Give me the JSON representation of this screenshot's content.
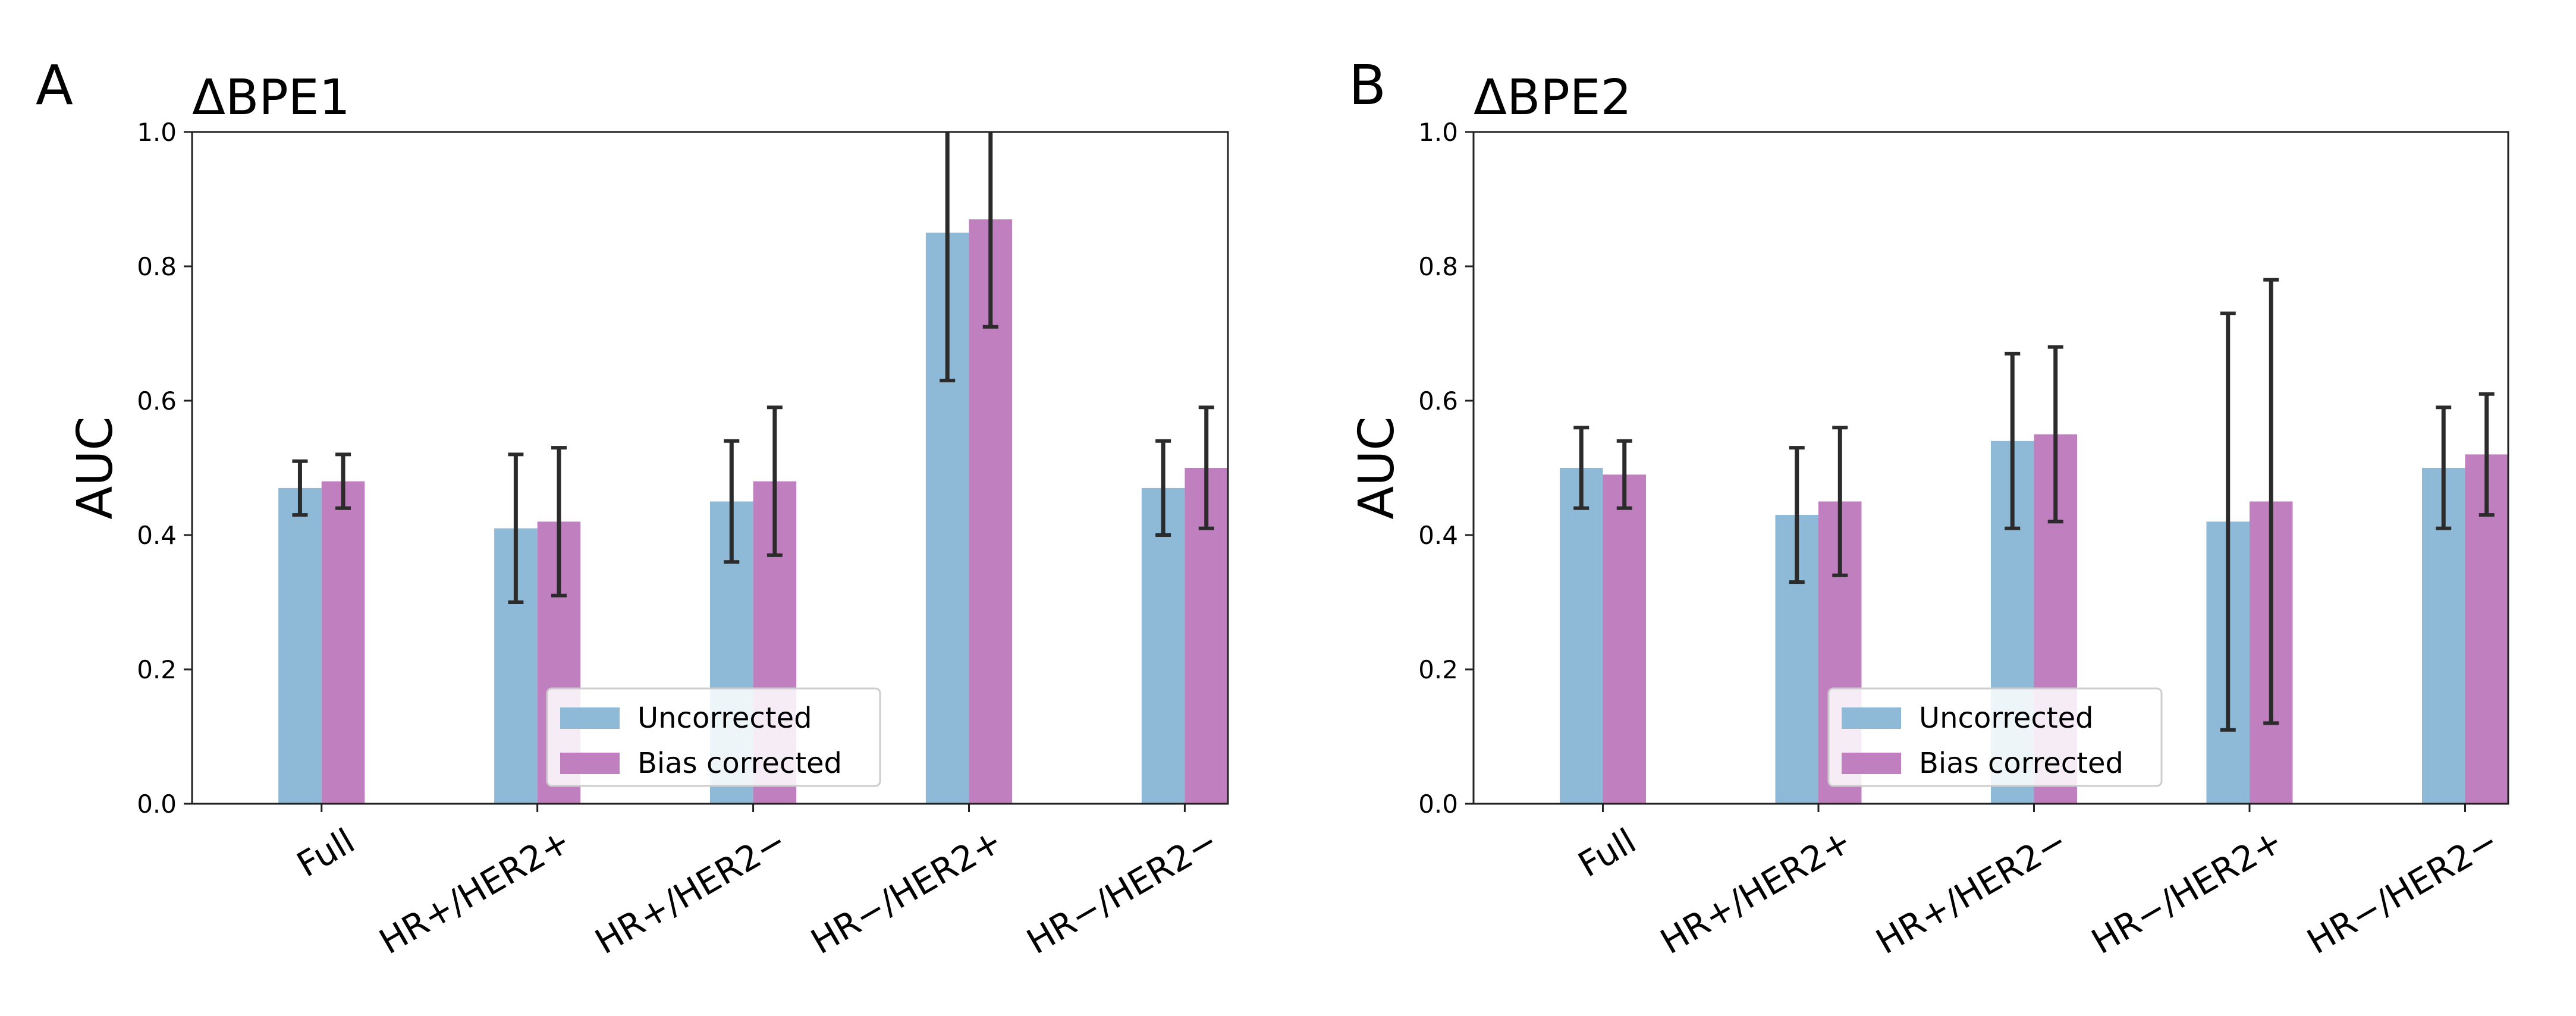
{
  "colors": {
    "uncorrected": "#8ebad8",
    "bias_corrected": "#c07fbf",
    "error_bar": "#2b2b2b",
    "axes": "#222222"
  },
  "chart_data": [
    {
      "type": "bar",
      "panel_letter": "A",
      "title": "ΔBPE1",
      "xlabel": "",
      "ylabel": "AUC",
      "ylim": [
        0,
        1.0
      ],
      "yticks": [
        "0.0",
        "0.2",
        "0.4",
        "0.6",
        "0.8",
        "1.0"
      ],
      "grid": false,
      "legend_placement": "lower-center",
      "categories": [
        "Full",
        "HR+/HER2+",
        "HR+/HER2−",
        "HR−/HER2+",
        "HR−/HER2−"
      ],
      "series": [
        {
          "name": "Uncorrected",
          "values": [
            0.47,
            0.41,
            0.45,
            0.85,
            0.47
          ],
          "err_low": [
            0.43,
            0.3,
            0.36,
            0.63,
            0.4
          ],
          "err_high": [
            0.51,
            0.52,
            0.54,
            1.07,
            0.54
          ]
        },
        {
          "name": "Bias corrected",
          "values": [
            0.48,
            0.42,
            0.48,
            0.87,
            0.5
          ],
          "err_low": [
            0.44,
            0.31,
            0.37,
            0.71,
            0.41
          ],
          "err_high": [
            0.52,
            0.53,
            0.59,
            1.03,
            0.59
          ]
        }
      ]
    },
    {
      "type": "bar",
      "panel_letter": "B",
      "title": "ΔBPE2",
      "xlabel": "",
      "ylabel": "AUC",
      "ylim": [
        0,
        1.0
      ],
      "yticks": [
        "0.0",
        "0.2",
        "0.4",
        "0.6",
        "0.8",
        "1.0"
      ],
      "grid": false,
      "legend_placement": "lower-center",
      "categories": [
        "Full",
        "HR+/HER2+",
        "HR+/HER2−",
        "HR−/HER2+",
        "HR−/HER2−"
      ],
      "series": [
        {
          "name": "Uncorrected",
          "values": [
            0.5,
            0.43,
            0.54,
            0.42,
            0.5
          ],
          "err_low": [
            0.44,
            0.33,
            0.41,
            0.11,
            0.41
          ],
          "err_high": [
            0.56,
            0.53,
            0.67,
            0.73,
            0.59
          ]
        },
        {
          "name": "Bias corrected",
          "values": [
            0.49,
            0.45,
            0.55,
            0.45,
            0.52
          ],
          "err_low": [
            0.44,
            0.34,
            0.42,
            0.12,
            0.43
          ],
          "err_high": [
            0.54,
            0.56,
            0.68,
            0.78,
            0.61
          ]
        }
      ]
    }
  ]
}
